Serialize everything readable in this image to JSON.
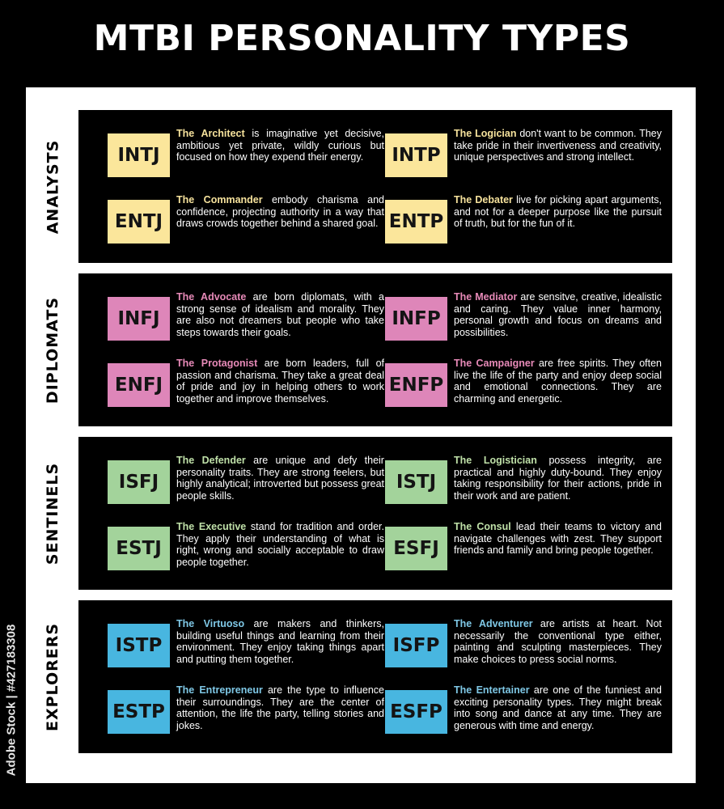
{
  "title": "MTBI PERSONALITY TYPES",
  "watermark": "Adobe Stock | #427183308",
  "categories": [
    {
      "label": "ANALYSTS",
      "badge_color": "#fbe69b",
      "name_color": "#f6e29c",
      "types": [
        {
          "code": "INTJ",
          "name": "The Architect",
          "desc": " is imaginative yet decisive, ambitious yet private, wildly curious but focused on how they expend their energy."
        },
        {
          "code": "INTP",
          "name": "The Logician",
          "desc": " don't want to be common. They take pride in their invertiveness and creativity, unique perspectives and strong intellect."
        },
        {
          "code": "ENTJ",
          "name": "The Commander",
          "desc": " embody charisma and confidence, projecting authority in a way that draws crowds together behind a shared goal."
        },
        {
          "code": "ENTP",
          "name": "The Debater",
          "desc": " live for picking apart arguments, and not for a deeper purpose like the pursuit of truth, but for the fun of it."
        }
      ]
    },
    {
      "label": "DIPLOMATS",
      "badge_color": "#de86b9",
      "name_color": "#e78ab8",
      "types": [
        {
          "code": "INFJ",
          "name": "The Advocate",
          "desc": " are born diplomats, with a strong sense of idealism and morality. They are also not dreamers but people who take steps towards their goals."
        },
        {
          "code": "INFP",
          "name": "The Mediator",
          "desc": " are sensitve, creative, idealistic and caring. They value inner harmony, personal growth and focus on dreams and possibilities."
        },
        {
          "code": "ENFJ",
          "name": "The Protagonist",
          "desc": " are born leaders, full of passion and charisma. They take a great deal of pride and joy in helping others to work together and improve themselves."
        },
        {
          "code": "ENFP",
          "name": "The Campaigner",
          "desc": " are free spirits. They often live the life of the party and enjoy deep social and emotional connections. They are charming and energetic."
        }
      ]
    },
    {
      "label": "SENTINELS",
      "badge_color": "#a3d39b",
      "name_color": "#bfe0a8",
      "types": [
        {
          "code": "ISFJ",
          "name": "The Defender",
          "desc": " are unique and defy their personality traits. They are strong feelers, but highly analytical; introverted but possess great people skills."
        },
        {
          "code": "ISTJ",
          "name": "The Logistician",
          "desc": " possess integrity, are practical and highly duty-bound. They enjoy taking responsibility for their actions, pride in their work and are patient."
        },
        {
          "code": "ESTJ",
          "name": "The Executive",
          "desc": " stand for tradition and order. They apply their understanding of what is right, wrong and socially acceptable to draw people together."
        },
        {
          "code": "ESFJ",
          "name": "The Consul",
          "desc": " lead their teams to victory and navigate challenges with zest. They support friends and family and bring people together."
        }
      ]
    },
    {
      "label": "EXPLORERS",
      "badge_color": "#48b6e0",
      "name_color": "#7fc8e6",
      "types": [
        {
          "code": "ISTP",
          "name": "The Virtuoso",
          "desc": " are makers and thinkers, building useful things and learning from their environment. They enjoy taking things apart and putting them together."
        },
        {
          "code": "ISFP",
          "name": "The Adventurer",
          "desc": " are artists at heart. Not necessarily the conventional type either, painting and sculpting masterpieces. They make choices to press social norms."
        },
        {
          "code": "ESTP",
          "name": "The Entrepreneur",
          "desc": " are the type to influence their surroundings. They are the center of attention, the life the party, telling stories and jokes."
        },
        {
          "code": "ESFP",
          "name": "The Entertainer",
          "desc": " are one of the funniest and exciting personality types. They might break into song and dance at any time. They are generous with time and energy."
        }
      ]
    }
  ]
}
